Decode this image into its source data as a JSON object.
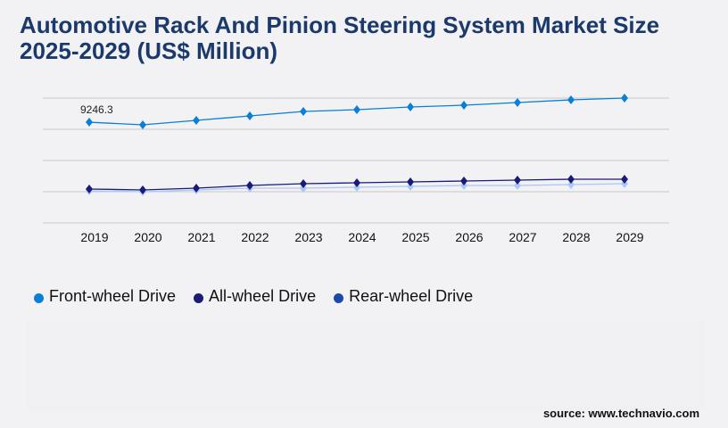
{
  "title": "Automotive Rack And Pinion Steering System Market Size 2025-2029 (US$ Million)",
  "source": "source: www.technavio.com",
  "chart_data": {
    "type": "line",
    "title": "Automotive Rack And Pinion Steering System Market Size 2025-2029 (US$ Million)",
    "categories": [
      "2019",
      "2020",
      "2021",
      "2022",
      "2023",
      "2024",
      "2025",
      "2026",
      "2027",
      "2028",
      "2029"
    ],
    "ylim": [
      0,
      11460
    ],
    "grid": true,
    "legend": "bottom-left",
    "annotation": "9246.3",
    "series": [
      {
        "name": "Front-wheel Drive",
        "color": "#0a7fd6",
        "legend_color": "#0a7fd6",
        "values": [
          9246.3,
          9005,
          9414,
          9823,
          10233,
          10396,
          10642,
          10806,
          11051,
          11297,
          11460
        ]
      },
      {
        "name": "All-wheel Drive",
        "color": "#1a1a78",
        "legend_color": "#1a1a78",
        "values": [
          3111,
          3029,
          3193,
          3438,
          3602,
          3684,
          3766,
          3848,
          3929,
          4011,
          4011
        ]
      },
      {
        "name": "Rear-wheel Drive",
        "color": "#a9c8f5",
        "legend_color": "#1a4aa8",
        "values": [
          2947,
          2865,
          3029,
          3193,
          3193,
          3274,
          3356,
          3438,
          3438,
          3520,
          3602
        ]
      }
    ]
  }
}
